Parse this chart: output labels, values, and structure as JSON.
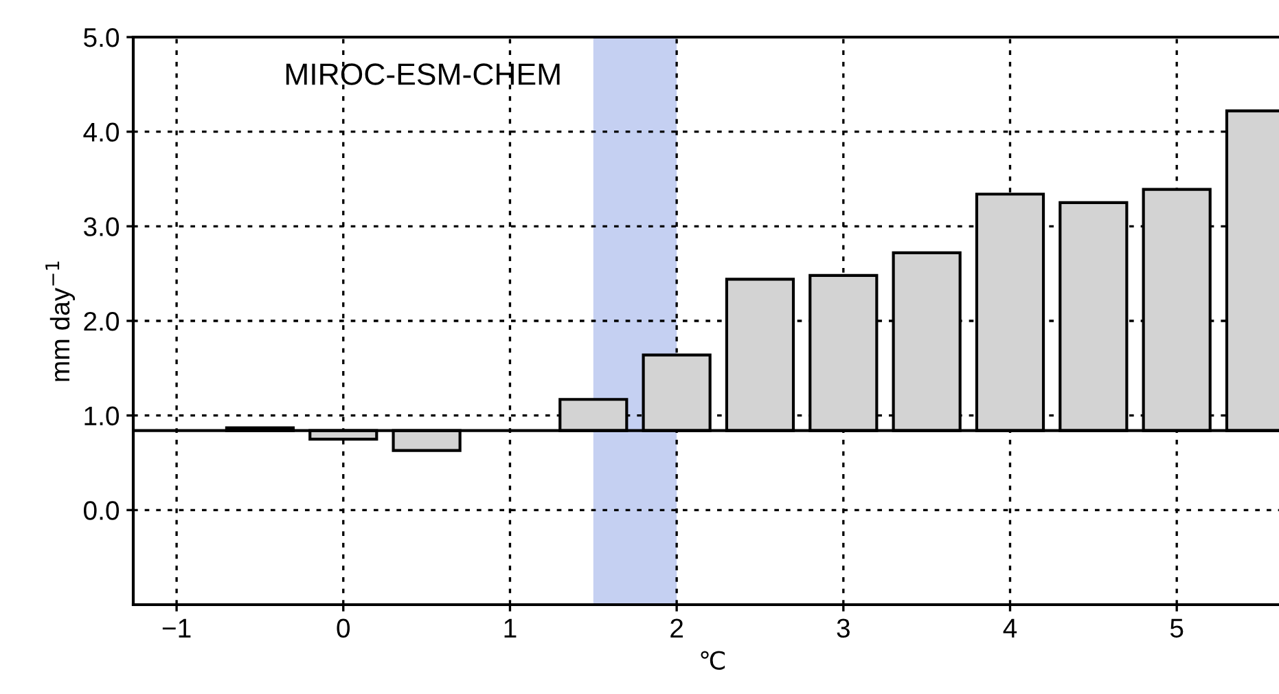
{
  "chart_data": {
    "type": "bar",
    "x": [
      -0.5,
      0,
      0.5,
      1.5,
      2,
      2.5,
      3,
      3.5,
      4,
      4.5,
      5,
      5.5
    ],
    "values": [
      0.03,
      -0.09,
      -0.21,
      0.33,
      0.8,
      1.6,
      1.64,
      1.88,
      2.5,
      2.41,
      2.55,
      3.38
    ],
    "base": [
      0.84,
      0.84,
      0.84,
      0.84,
      0.84,
      0.84,
      0.84,
      0.84,
      0.84,
      0.84,
      0.84,
      0.84
    ],
    "color": "#d3d3d3",
    "xlabel": "℃",
    "ylabel": "mm day$^{−1}$",
    "annotations": [
      "MIROC-ESM-CHEM"
    ],
    "xlim": [
      -1.26,
      5.69
    ],
    "ylim": [
      -1.0,
      5.0
    ],
    "xticks": [
      {
        "value": -1,
        "label": "−1"
      },
      0,
      1,
      2,
      3,
      4,
      5
    ],
    "yticks": [
      {
        "value": 0,
        "label": "0.0"
      },
      {
        "value": 1,
        "label": "1.0"
      },
      {
        "value": 2,
        "label": "2.0"
      },
      {
        "value": 3,
        "label": "3.0"
      },
      {
        "value": 4,
        "label": "4.0"
      },
      {
        "value": 5,
        "label": "5.0"
      }
    ],
    "ref_lines": [
      {
        "axis": "y",
        "value": 0.84,
        "color": "#000000",
        "line_style": "solid"
      }
    ],
    "bands": [
      {
        "axis": "x",
        "from": 1.5,
        "to": 2.0,
        "color": "#c5d0f2"
      }
    ],
    "grid": true,
    "legend": false
  }
}
